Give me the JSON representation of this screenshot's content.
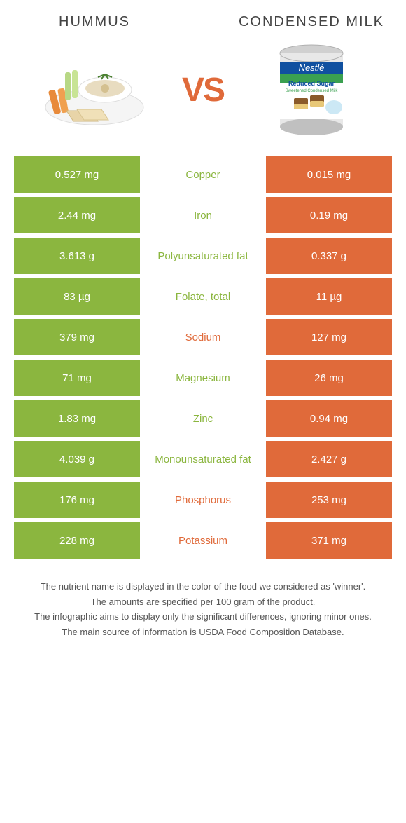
{
  "header": {
    "left_title": "Hummus",
    "right_title": "Condensed Milk"
  },
  "vs_label": "VS",
  "colors": {
    "left": "#8bb63f",
    "right": "#e06a3a",
    "background": "#ffffff",
    "text": "#555555"
  },
  "rows": [
    {
      "left": "0.527 mg",
      "nutrient": "Copper",
      "right": "0.015 mg",
      "winner": "left"
    },
    {
      "left": "2.44 mg",
      "nutrient": "Iron",
      "right": "0.19 mg",
      "winner": "left"
    },
    {
      "left": "3.613 g",
      "nutrient": "Polyunsaturated fat",
      "right": "0.337 g",
      "winner": "left"
    },
    {
      "left": "83 µg",
      "nutrient": "Folate, total",
      "right": "11 µg",
      "winner": "left"
    },
    {
      "left": "379 mg",
      "nutrient": "Sodium",
      "right": "127 mg",
      "winner": "right"
    },
    {
      "left": "71 mg",
      "nutrient": "Magnesium",
      "right": "26 mg",
      "winner": "left"
    },
    {
      "left": "1.83 mg",
      "nutrient": "Zinc",
      "right": "0.94 mg",
      "winner": "left"
    },
    {
      "left": "4.039 g",
      "nutrient": "Monounsaturated fat",
      "right": "2.427 g",
      "winner": "left"
    },
    {
      "left": "176 mg",
      "nutrient": "Phosphorus",
      "right": "253 mg",
      "winner": "right"
    },
    {
      "left": "228 mg",
      "nutrient": "Potassium",
      "right": "371 mg",
      "winner": "right"
    }
  ],
  "footer": {
    "line1": "The nutrient name is displayed in the color of the food we considered as 'winner'.",
    "line2": "The amounts are specified per 100 gram of the product.",
    "line3": "The infographic aims to display only the significant differences, ignoring minor ones.",
    "line4": "The main source of information is USDA Food Composition Database."
  },
  "illustrations": {
    "left_alt": "hummus-plate-icon",
    "right_alt": "condensed-milk-can-icon"
  }
}
